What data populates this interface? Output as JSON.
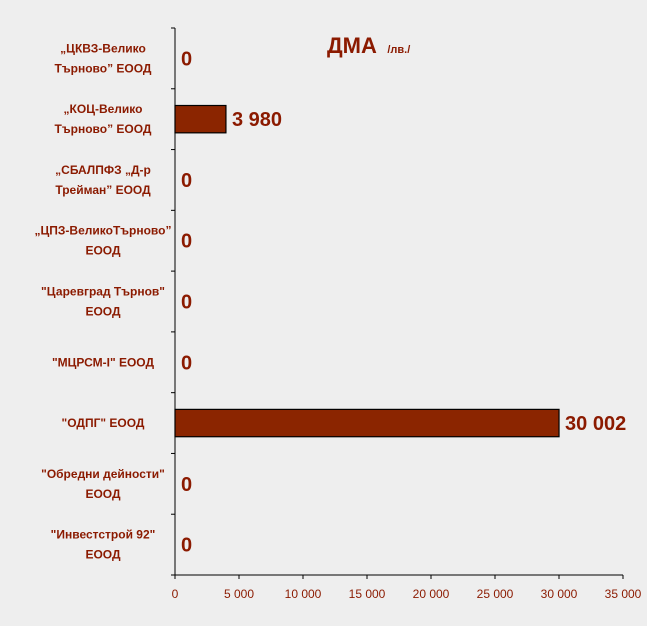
{
  "chart_data": {
    "type": "bar",
    "orientation": "horizontal",
    "title": "ДМА",
    "title_unit": "/лв./",
    "categories": [
      [
        "„ЦКВЗ-Велико",
        "Търново” ЕООД"
      ],
      [
        "„КОЦ-Велико",
        "Търново” ЕООД"
      ],
      [
        "„СБАЛПФЗ „Д-р",
        "Трейман” ЕООД"
      ],
      [
        "„ЦПЗ-ВеликоТърново”",
        "ЕООД"
      ],
      [
        "\"Царевград Търнов\"",
        "ЕООД"
      ],
      [
        "\"МЦРСМ-I\" ЕООД"
      ],
      [
        "\"ОДПГ\" ЕООД"
      ],
      [
        "\"Обредни дейности\"",
        "ЕООД"
      ],
      [
        "\"Инвестстрой 92\"",
        "ЕООД"
      ]
    ],
    "values": [
      0,
      3980,
      0,
      0,
      0,
      0,
      30002,
      0,
      0
    ],
    "value_labels": [
      "0",
      "3 980",
      "0",
      "0",
      "0",
      "0",
      "30 002",
      "0",
      "0"
    ],
    "xlim": [
      0,
      35000
    ],
    "xticks": [
      0,
      5000,
      10000,
      15000,
      20000,
      25000,
      30000,
      35000
    ],
    "xtick_labels": [
      "0",
      "5 000",
      "10 000",
      "15 000",
      "20 000",
      "25 000",
      "30 000",
      "35 000"
    ],
    "grid": false,
    "legend": "none",
    "bar_color": "#8b2500",
    "text_color": "#8b1a00",
    "background": "#eeeeee"
  }
}
